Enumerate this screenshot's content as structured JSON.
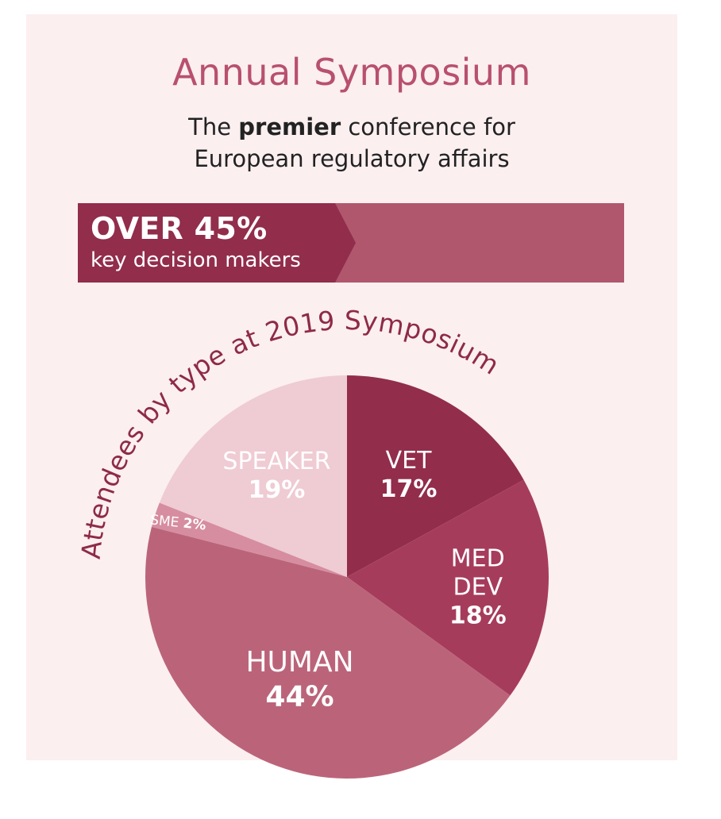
{
  "header": {
    "title": "Annual Symposium",
    "subtitle_pre": "The ",
    "subtitle_bold": "premier",
    "subtitle_post": " conference for",
    "subtitle_line2": "European regulatory affairs"
  },
  "banner": {
    "headline": "OVER 45%",
    "caption": "key decision makers"
  },
  "colors": {
    "panel": "#fbeff0",
    "title": "#b8506e",
    "banner_dark": "#922d4c",
    "banner_light": "#b0576e"
  },
  "chart_data": {
    "type": "pie",
    "title": "Attendees by type at 2019 Symposium",
    "slices": [
      {
        "lines": [
          "VET"
        ],
        "value": 17,
        "value_label": "17%",
        "color": "#922d4c"
      },
      {
        "lines": [
          "MED",
          "DEV"
        ],
        "value": 18,
        "value_label": "18%",
        "color": "#a63c5c"
      },
      {
        "lines": [
          "HUMAN"
        ],
        "value": 44,
        "value_label": "44%",
        "color": "#bb6479"
      },
      {
        "lines": [
          "SME"
        ],
        "value": 2,
        "value_label": "2%",
        "color": "#d68da0"
      },
      {
        "lines": [
          "SPEAKER"
        ],
        "value": 19,
        "value_label": "19%",
        "color": "#efcbd3"
      }
    ]
  }
}
